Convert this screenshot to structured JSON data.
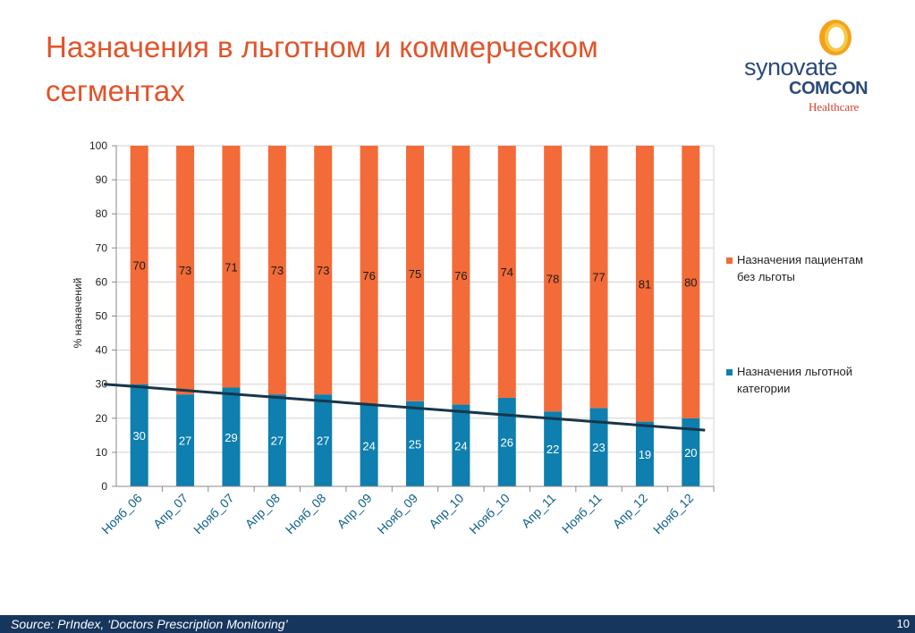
{
  "header": {
    "title": "Назначения в льготном и коммерческом сегментах"
  },
  "logo": {
    "line1": "synovate",
    "line2": "COMCON",
    "line3": "Healthcare"
  },
  "chart_data": {
    "type": "bar",
    "stacked": true,
    "categories": [
      "Нояб_06",
      "Апр_07",
      "Нояб_07",
      "Апр_08",
      "Нояб_08",
      "Апр_09",
      "Нояб_09",
      "Апр_10",
      "Нояб_10",
      "Апр_11",
      "Нояб_11",
      "Апр_12",
      "Нояб_12"
    ],
    "series": [
      {
        "name": "Назначения льготной категории",
        "values": [
          30,
          27,
          29,
          27,
          27,
          24,
          25,
          24,
          26,
          22,
          23,
          19,
          20
        ],
        "color": "#0e7fae"
      },
      {
        "name": "Назначения пациентам без льготы",
        "values": [
          70,
          73,
          71,
          73,
          73,
          76,
          75,
          76,
          74,
          78,
          77,
          81,
          80
        ],
        "color": "#f26b38"
      }
    ],
    "trendline": {
      "series": "Назначения льготной категории",
      "start": 30,
      "end": 16.5,
      "color": "#17364a"
    },
    "ylabel": "% назначений",
    "xlabel": "",
    "ylim": [
      0,
      100
    ],
    "yticks": [
      0,
      10,
      20,
      30,
      40,
      50,
      60,
      70,
      80,
      90,
      100
    ],
    "grid": true,
    "legend_position": "right"
  },
  "footer": {
    "source": "Source:  PrIndex, ‘Doctors Prescription Monitoring’",
    "page_number": "10"
  }
}
